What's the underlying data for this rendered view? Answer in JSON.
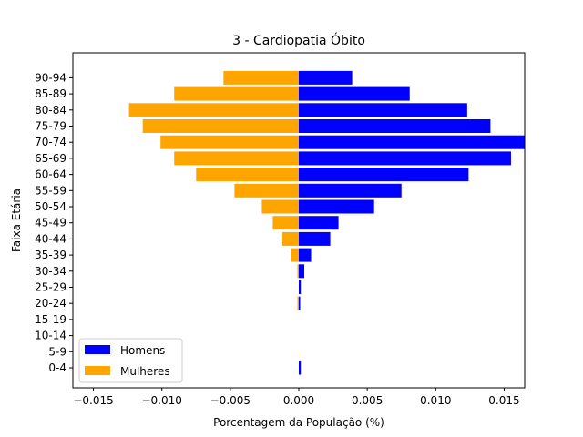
{
  "chart_data": {
    "type": "bar",
    "orientation": "horizontal",
    "title": "3 - Cardiopatia Óbito",
    "xlabel": "Porcentagem da População (%)",
    "ylabel": "Faixa Etária",
    "categories": [
      "0-4",
      "5-9",
      "10-14",
      "15-19",
      "20-24",
      "25-29",
      "30-34",
      "35-39",
      "40-44",
      "45-49",
      "50-54",
      "55-59",
      "60-64",
      "65-69",
      "70-74",
      "75-79",
      "80-84",
      "85-89",
      "90-94"
    ],
    "series": [
      {
        "name": "Homens",
        "color": "#0000ff",
        "values": [
          0.00015,
          0,
          0,
          0,
          0.0001,
          0.00015,
          0.0004,
          0.0009,
          0.0023,
          0.0029,
          0.0055,
          0.0075,
          0.0124,
          0.0155,
          0.0165,
          0.014,
          0.0123,
          0.0081,
          0.0039
        ]
      },
      {
        "name": "Mulheres",
        "color": "#ffa500",
        "values": [
          0,
          0,
          0,
          0,
          -0.0001,
          0,
          -0.0001,
          -0.0006,
          -0.0012,
          -0.0019,
          -0.0027,
          -0.0047,
          -0.0075,
          -0.0091,
          -0.0101,
          -0.0114,
          -0.0124,
          -0.0091,
          -0.0055
        ]
      }
    ],
    "xlim": [
      -0.0165,
      0.0165
    ],
    "xticks": [
      -0.015,
      -0.01,
      -0.005,
      0.0,
      0.005,
      0.01,
      0.015
    ],
    "xtick_labels": [
      "−0.015",
      "−0.010",
      "−0.005",
      "0.000",
      "0.005",
      "0.010",
      "0.015"
    ],
    "grid": false,
    "legend_position": "lower-left"
  }
}
